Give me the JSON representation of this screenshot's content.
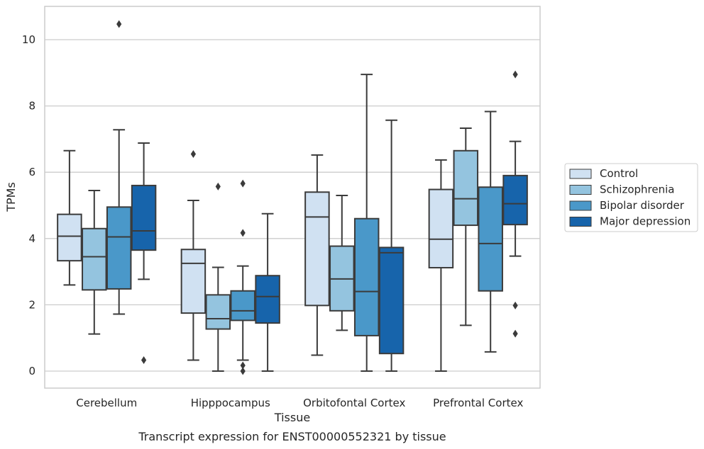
{
  "chart_data": {
    "type": "boxplot",
    "title": "",
    "caption": "Transcript expression for ENST00000552321 by tissue",
    "xlabel": "Tissue",
    "ylabel": "TPMs",
    "ylim": [
      -0.5,
      11
    ],
    "yticks": [
      0,
      2,
      4,
      6,
      8,
      10
    ],
    "grid": true,
    "legend_position": "right",
    "categories": [
      "Cerebellum",
      "Hipppocampus",
      "Orbitofontal Cortex",
      "Prefrontal Cortex"
    ],
    "series": [
      {
        "name": "Control",
        "color": "#d0e1f2",
        "boxes": [
          {
            "whislo": 2.6,
            "q1": 3.33,
            "med": 4.07,
            "q3": 4.73,
            "whishi": 6.65,
            "fliers": []
          },
          {
            "whislo": 0.33,
            "q1": 1.75,
            "med": 3.25,
            "q3": 3.67,
            "whishi": 5.15,
            "fliers": [
              6.55
            ]
          },
          {
            "whislo": 0.48,
            "q1": 1.98,
            "med": 4.65,
            "q3": 5.4,
            "whishi": 6.52,
            "fliers": []
          },
          {
            "whislo": 0.0,
            "q1": 3.12,
            "med": 3.98,
            "q3": 5.48,
            "whishi": 6.37,
            "fliers": []
          }
        ]
      },
      {
        "name": "Schizophrenia",
        "color": "#94c4df",
        "boxes": [
          {
            "whislo": 1.12,
            "q1": 2.45,
            "med": 3.45,
            "q3": 4.3,
            "whishi": 5.45,
            "fliers": []
          },
          {
            "whislo": 0.0,
            "q1": 1.27,
            "med": 1.58,
            "q3": 2.3,
            "whishi": 3.13,
            "fliers": [
              5.57
            ]
          },
          {
            "whislo": 1.23,
            "q1": 1.82,
            "med": 2.78,
            "q3": 3.77,
            "whishi": 5.3,
            "fliers": []
          },
          {
            "whislo": 1.38,
            "q1": 4.4,
            "med": 5.2,
            "q3": 6.65,
            "whishi": 7.33,
            "fliers": []
          }
        ]
      },
      {
        "name": "Bipolar disorder",
        "color": "#4a98c9",
        "boxes": [
          {
            "whislo": 1.72,
            "q1": 2.48,
            "med": 4.05,
            "q3": 4.95,
            "whishi": 7.28,
            "fliers": [
              10.47
            ]
          },
          {
            "whislo": 0.33,
            "q1": 1.53,
            "med": 1.82,
            "q3": 2.42,
            "whishi": 3.17,
            "fliers": [
              5.66,
              4.17,
              0.17,
              0.0
            ]
          },
          {
            "whislo": 0.0,
            "q1": 1.07,
            "med": 2.4,
            "q3": 4.6,
            "whishi": 8.95,
            "fliers": []
          },
          {
            "whislo": 0.58,
            "q1": 2.42,
            "med": 3.85,
            "q3": 5.55,
            "whishi": 7.83,
            "fliers": []
          }
        ]
      },
      {
        "name": "Major depression",
        "color": "#1764ab",
        "boxes": [
          {
            "whislo": 2.77,
            "q1": 3.65,
            "med": 4.23,
            "q3": 5.6,
            "whishi": 6.88,
            "fliers": [
              0.33
            ]
          },
          {
            "whislo": 0.0,
            "q1": 1.45,
            "med": 2.25,
            "q3": 2.88,
            "whishi": 4.75,
            "fliers": []
          },
          {
            "whislo": 0.0,
            "q1": 0.53,
            "med": 3.57,
            "q3": 3.73,
            "whishi": 7.57,
            "fliers": []
          },
          {
            "whislo": 3.47,
            "q1": 4.42,
            "med": 5.05,
            "q3": 5.9,
            "whishi": 6.93,
            "fliers": [
              8.95,
              1.98,
              1.13
            ]
          }
        ]
      }
    ]
  }
}
